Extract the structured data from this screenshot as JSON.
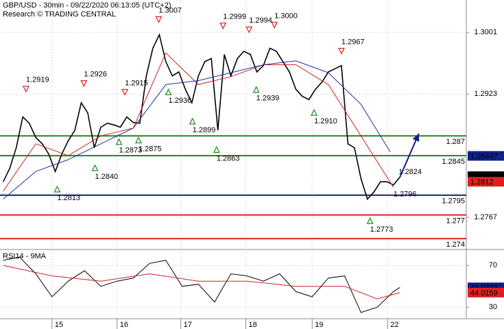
{
  "chart_data": [
    {
      "type": "line",
      "title": "GBP/USD - 30min - 09/22/2020 06:13:05 (UTC+2)",
      "subtitle": "Research © TRADING CENTRAL",
      "xlim": [
        0.2,
        7.37
      ],
      "xticks": [
        {
          "value": 1,
          "label": "15"
        },
        {
          "value": 2,
          "label": "16"
        },
        {
          "value": 2.98,
          "label": "17"
        },
        {
          "value": 3.98,
          "label": "18"
        },
        {
          "value": 5,
          "label": "19"
        },
        {
          "value": 6.16,
          "label": "22"
        }
      ],
      "ylim": [
        1.2728,
        1.3042
      ],
      "yticks": [
        1.3001,
        1.2923,
        1.2767
      ],
      "grid": true,
      "series": [
        {
          "color": "#000000",
          "width": 1.6,
          "x": [
            0.25,
            0.35,
            0.45,
            0.55,
            0.65,
            0.75,
            0.85,
            0.95,
            1.05,
            1.15,
            1.25,
            1.35,
            1.45,
            1.55,
            1.65,
            1.75,
            1.85,
            1.95,
            2.05,
            2.15,
            2.25,
            2.35,
            2.45,
            2.55,
            2.65,
            2.75,
            2.85,
            2.95,
            3.05,
            3.15,
            3.25,
            3.35,
            3.45,
            3.55,
            3.65,
            3.75,
            3.85,
            3.95,
            4.05,
            4.15,
            4.25,
            4.35,
            4.45,
            4.55,
            4.65,
            4.75,
            4.85,
            4.95,
            5.05,
            5.15,
            5.25,
            5.35,
            5.45,
            5.55,
            5.65,
            5.75,
            5.85,
            5.95,
            6.05,
            6.15,
            6.25,
            6.35
          ],
          "values": [
            1.2812,
            1.2829,
            1.2855,
            1.2894,
            1.2886,
            1.2868,
            1.286,
            1.2847,
            1.2825,
            1.2847,
            1.2864,
            1.2877,
            1.2912,
            1.2899,
            1.2855,
            1.2881,
            1.2886,
            1.2884,
            1.2881,
            1.2894,
            1.2887,
            1.2886,
            1.2946,
            1.2981,
            1.2998,
            1.2964,
            1.2946,
            1.2951,
            1.2929,
            1.2912,
            1.2946,
            1.2964,
            1.2968,
            1.2877,
            1.2973,
            1.2946,
            1.2968,
            1.2977,
            1.2973,
            1.2951,
            1.2959,
            1.2981,
            1.2977,
            1.2964,
            1.2951,
            1.2929,
            1.292,
            1.2916,
            1.2929,
            1.2938,
            1.2951,
            1.2955,
            1.2959,
            1.286,
            1.2855,
            1.2816,
            1.279,
            1.2799,
            1.2812,
            1.2812,
            1.2808,
            1.2818
          ]
        },
        {
          "color": "#d02020",
          "width": 1,
          "x": [
            0.25,
            0.75,
            1.25,
            1.75,
            2.25,
            2.75,
            3.25,
            3.75,
            4.25,
            4.75,
            5.25,
            5.75,
            6.25
          ],
          "values": [
            1.28,
            1.286,
            1.2845,
            1.287,
            1.288,
            1.2975,
            1.2935,
            1.2945,
            1.296,
            1.296,
            1.2935,
            1.287,
            1.2805
          ]
        },
        {
          "color": "#2030a0",
          "width": 1,
          "x": [
            0.25,
            0.75,
            1.25,
            1.75,
            2.25,
            2.75,
            3.25,
            3.75,
            4.25,
            4.75,
            5.25,
            5.75,
            6.2
          ],
          "values": [
            1.279,
            1.2825,
            1.284,
            1.286,
            1.288,
            1.2935,
            1.294,
            1.295,
            1.296,
            1.2965,
            1.295,
            1.291,
            1.285
          ]
        }
      ],
      "projection": {
        "color": "#10208a",
        "x": [
          6.35,
          6.64
        ],
        "values": [
          1.2818,
          1.2873
        ]
      },
      "levels": [
        {
          "value": 1.287,
          "label": "1.287",
          "color": "#1a8a1a"
        },
        {
          "value": 1.2845,
          "label": "1.2845",
          "color": "#1a8a1a"
        },
        {
          "value": 1.2795,
          "label": "1.2795",
          "color": "#10208a"
        },
        {
          "value": 1.277,
          "label": "1.277",
          "color": "#e02020"
        },
        {
          "value": 1.274,
          "label": "1.274",
          "color": "#e02020"
        }
      ],
      "pivots": [
        {
          "x": 0.6,
          "value": 1.2919,
          "label": "1.2919",
          "kind": "high"
        },
        {
          "x": 1.49,
          "value": 1.2926,
          "label": "1.2926",
          "kind": "high"
        },
        {
          "x": 2.12,
          "value": 1.2915,
          "label": "1.2915",
          "kind": "high"
        },
        {
          "x": 2.64,
          "value": 1.3007,
          "label": "1.3007",
          "kind": "high"
        },
        {
          "x": 3.63,
          "value": 1.2999,
          "label": "1.2999",
          "kind": "high"
        },
        {
          "x": 4.03,
          "value": 1.2994,
          "label": "1.2994",
          "kind": "high"
        },
        {
          "x": 4.42,
          "value": 1.3,
          "label": "1.3000",
          "kind": "high"
        },
        {
          "x": 5.45,
          "value": 1.2967,
          "label": "1.2967",
          "kind": "high"
        },
        {
          "x": 1.08,
          "value": 1.2813,
          "label": "1.2813",
          "kind": "low"
        },
        {
          "x": 1.66,
          "value": 1.284,
          "label": "1.2840",
          "kind": "low"
        },
        {
          "x": 2.03,
          "value": 1.2873,
          "label": "1.2873",
          "kind": "low"
        },
        {
          "x": 2.33,
          "value": 1.2875,
          "label": "1.2875",
          "kind": "low"
        },
        {
          "x": 2.79,
          "value": 1.2936,
          "label": "1.2936",
          "kind": "low"
        },
        {
          "x": 3.16,
          "value": 1.2899,
          "label": "1.2899",
          "kind": "low"
        },
        {
          "x": 3.53,
          "value": 1.2863,
          "label": "1.2863",
          "kind": "low"
        },
        {
          "x": 4.14,
          "value": 1.2939,
          "label": "1.2939",
          "kind": "low"
        },
        {
          "x": 5.03,
          "value": 1.291,
          "label": "1.2910",
          "kind": "low"
        },
        {
          "x": 5.89,
          "value": 1.2773,
          "label": "1.2773",
          "kind": "low"
        }
      ],
      "annotations": [
        {
          "x": 6.33,
          "value": 1.2824,
          "label": "1.2824"
        },
        {
          "x": 6.25,
          "value": 1.2796,
          "label": "1.2796"
        }
      ],
      "price_markers": [
        {
          "value": 1.28447,
          "label": "1.28447",
          "color": "#10208a"
        },
        {
          "value": 1.2819,
          "label": "1.2819",
          "color": "#000000"
        },
        {
          "value": 1.2812,
          "label": "1.2812",
          "color": "#e02020"
        }
      ]
    },
    {
      "type": "line",
      "title": "RSI14 - 9MA",
      "ylim": [
        19,
        84
      ],
      "yticks": [
        70,
        30
      ],
      "series": [
        {
          "color": "#000000",
          "width": 1,
          "x": [
            0.25,
            0.5,
            0.75,
            1.0,
            1.25,
            1.5,
            1.75,
            2.0,
            2.25,
            2.5,
            2.75,
            3.0,
            3.25,
            3.5,
            3.75,
            4.0,
            4.25,
            4.5,
            4.75,
            5.0,
            5.25,
            5.5,
            5.75,
            6.0,
            6.25,
            6.35
          ],
          "values": [
            75,
            78,
            62,
            40,
            55,
            65,
            50,
            55,
            58,
            72,
            75,
            50,
            52,
            35,
            62,
            60,
            55,
            62,
            45,
            40,
            58,
            60,
            25,
            30,
            45,
            49
          ]
        },
        {
          "color": "#d02020",
          "width": 1,
          "x": [
            0.25,
            1.0,
            1.75,
            2.5,
            3.25,
            4.0,
            4.75,
            5.5,
            6.0,
            6.35
          ],
          "values": [
            70,
            60,
            55,
            62,
            55,
            55,
            50,
            50,
            38,
            44
          ]
        }
      ],
      "price_markers": [
        {
          "value": 49.0323,
          "label": "49.0323",
          "color": "#10208a"
        },
        {
          "value": 44.0159,
          "label": "44.0159",
          "color": "#e02020"
        }
      ]
    }
  ]
}
